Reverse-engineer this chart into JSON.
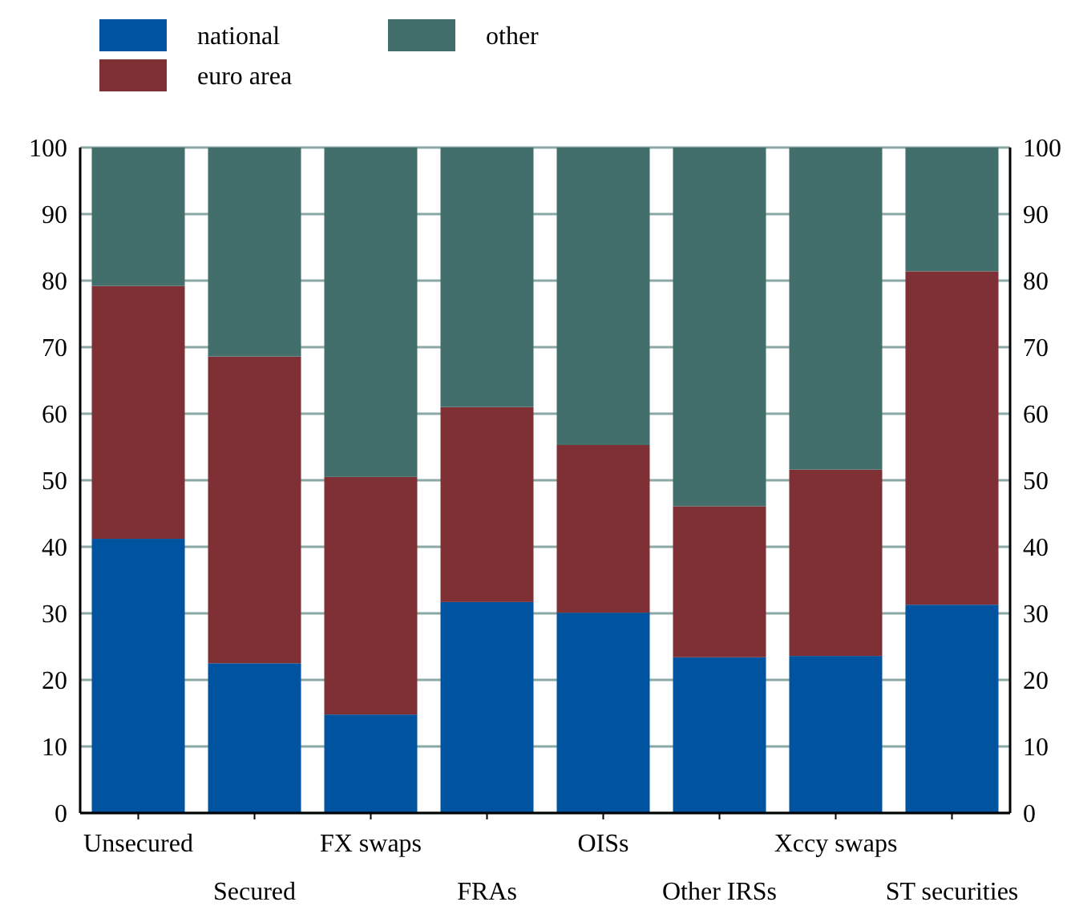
{
  "chart_data": {
    "type": "bar",
    "stacked": true,
    "categories": [
      "Unsecured",
      "Secured",
      "FX swaps",
      "FRAs",
      "OISs",
      "Other IRSs",
      "Xccy swaps",
      "ST securities"
    ],
    "series": [
      {
        "name": "national",
        "color": "#00539f",
        "values": [
          41.2,
          22.5,
          14.8,
          31.7,
          30.1,
          23.4,
          23.6,
          31.3
        ]
      },
      {
        "name": "euro area",
        "color": "#7f3035",
        "values": [
          38.0,
          46.1,
          35.7,
          29.3,
          25.2,
          22.7,
          28.0,
          50.1
        ]
      },
      {
        "name": "other",
        "color": "#426f6b",
        "values": [
          20.8,
          31.4,
          49.5,
          39.0,
          44.7,
          53.9,
          48.4,
          18.6
        ]
      }
    ],
    "ylim": [
      0,
      100
    ],
    "yticks": [
      0,
      10,
      20,
      30,
      40,
      50,
      60,
      70,
      80,
      90,
      100
    ],
    "y2lim": [
      0,
      100
    ],
    "y2ticks": [
      0,
      10,
      20,
      30,
      40,
      50,
      60,
      70,
      80,
      90,
      100
    ],
    "grid": "y",
    "legend": "top left"
  }
}
